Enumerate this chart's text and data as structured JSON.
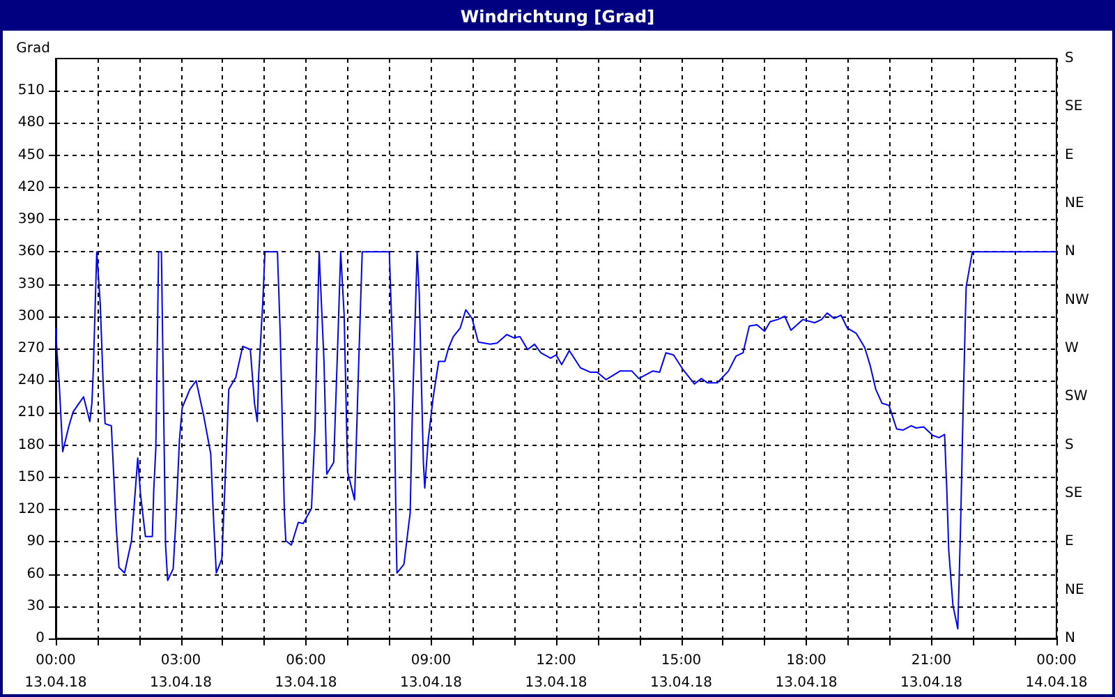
{
  "chart_data": {
    "type": "line",
    "title": "Windrichtung [Grad]",
    "ylabel": "Grad",
    "x": [
      "--04-13T00:00",
      "--04-13T00:02",
      "--04-13T00:05",
      "--04-13T00:10",
      "--04-13T00:19",
      "--04-13T00:25",
      "--04-13T00:40",
      "--04-13T00:49",
      "--04-13T00:52",
      "--04-13T00:54",
      "--04-13T00:59",
      "--04-13T01:04",
      "--04-13T01:08",
      "--04-13T01:11",
      "--04-13T01:20",
      "--04-13T01:27",
      "--04-13T01:31",
      "--04-13T01:39",
      "--04-13T01:49",
      "--04-13T01:58",
      "--04-13T02:02",
      "--04-13T02:09",
      "--04-13T02:19",
      "--04-13T02:21",
      "--04-13T02:24",
      "--04-13T02:28",
      "--04-13T02:32",
      "--04-13T02:34",
      "--04-13T02:38",
      "--04-13T02:41",
      "--04-13T02:49",
      "--04-13T02:53",
      "--04-13T02:58",
      "--04-13T03:02",
      "--04-13T03:13",
      "--04-13T03:22",
      "--04-13T03:33",
      "--04-13T03:43",
      "--04-13T03:47",
      "--04-13T03:51",
      "--04-13T03:59",
      "--04-13T04:04",
      "--04-13T04:09",
      "--04-13T04:19",
      "--04-13T04:29",
      "--04-13T04:40",
      "--04-13T04:46",
      "--04-13T04:50",
      "--04-13T04:52",
      "--04-13T04:58",
      "--04-13T05:01",
      "--04-13T05:19",
      "--04-13T05:23",
      "--04-13T05:29",
      "--04-13T05:31",
      "--04-13T05:39",
      "--04-13T05:49",
      "--04-13T05:56",
      "--04-13T06:08",
      "--04-13T06:13",
      "--04-13T06:19",
      "--04-13T06:26",
      "--04-13T06:30",
      "--04-13T06:40",
      "--04-13T06:46",
      "--04-13T06:50",
      "--04-13T06:55",
      "--04-13T07:00",
      "--04-13T07:10",
      "--04-13T07:16",
      "--04-13T07:21",
      "--04-13T08:00",
      "--04-13T08:07",
      "--04-13T08:10",
      "--04-13T08:11",
      "--04-13T08:21",
      "--04-13T08:30",
      "--04-13T08:33",
      "--04-13T08:40",
      "--04-13T08:43",
      "--04-13T08:49",
      "--04-13T08:51",
      "--04-13T08:56",
      "--04-13T09:03",
      "--04-13T09:11",
      "--04-13T09:20",
      "--04-13T09:25",
      "--04-13T09:32",
      "--04-13T09:42",
      "--04-13T09:50",
      "--04-13T09:59",
      "--04-13T10:08",
      "--04-13T10:25",
      "--04-13T10:35",
      "--04-13T10:49",
      "--04-13T10:59",
      "--04-13T11:08",
      "--04-13T11:19",
      "--04-13T11:29",
      "--04-13T11:38",
      "--04-13T11:52",
      "--04-13T12:00",
      "--04-13T12:08",
      "--04-13T12:19",
      "--04-13T12:35",
      "--04-13T12:49",
      "--04-13T12:59",
      "--04-13T13:12",
      "--04-13T13:32",
      "--04-13T13:49",
      "--04-13T13:59",
      "--04-13T14:19",
      "--04-13T14:29",
      "--04-13T14:38",
      "--04-13T14:49",
      "--04-13T15:02",
      "--04-13T15:19",
      "--04-13T15:29",
      "--04-13T15:38",
      "--04-13T15:52",
      "--04-13T16:08",
      "--04-13T16:19",
      "--04-13T16:29",
      "--04-13T16:38",
      "--04-13T16:49",
      "--04-13T17:00",
      "--04-13T17:08",
      "--04-13T17:19",
      "--04-13T17:29",
      "--04-13T17:38",
      "--04-13T17:55",
      "--04-13T18:12",
      "--04-13T18:22",
      "--04-13T18:30",
      "--04-13T18:40",
      "--04-13T18:50",
      "--04-13T18:59",
      "--04-13T19:12",
      "--04-13T19:24",
      "--04-13T19:32",
      "--04-13T19:40",
      "--04-13T19:49",
      "--04-13T19:59",
      "--04-13T20:10",
      "--04-13T20:19",
      "--04-13T20:31",
      "--04-13T20:38",
      "--04-13T20:49",
      "--04-13T21:02",
      "--04-13T21:11",
      "--04-13T21:19",
      "--04-13T21:22",
      "--04-13T21:25",
      "--04-13T21:31",
      "--04-13T21:38",
      "--04-13T21:42",
      "--04-13T21:46",
      "--04-13T21:50",
      "--04-13T21:54",
      "--04-13T21:59",
      "--04-14T00:00"
    ],
    "series": [
      {
        "color": "#0000ff",
        "values": [
          289,
          264,
          237,
          174,
          198,
          211,
          225,
          202,
          219,
          249,
          360,
          312,
          241,
          200,
          198,
          104,
          66,
          61,
          91,
          168,
          134,
          95,
          95,
          138,
          177,
          360,
          360,
          271,
          87,
          54,
          65,
          112,
          185,
          215,
          232,
          240,
          207,
          172,
          112,
          61,
          74,
          151,
          232,
          243,
          272,
          269,
          219,
          202,
          245,
          314,
          360,
          360,
          284,
          117,
          91,
          87,
          108,
          107,
          121,
          194,
          360,
          258,
          153,
          164,
          279,
          360,
          301,
          155,
          129,
          258,
          360,
          360,
          224,
          91,
          61,
          69,
          117,
          207,
          360,
          322,
          164,
          140,
          185,
          224,
          258,
          258,
          270,
          281,
          289,
          306,
          298,
          276,
          274,
          275,
          283,
          280,
          281,
          269,
          274,
          266,
          261,
          264,
          255,
          268,
          252,
          248,
          248,
          241,
          249,
          249,
          242,
          249,
          248,
          266,
          264,
          251,
          237,
          242,
          238,
          238,
          249,
          263,
          266,
          291,
          292,
          286,
          295,
          297,
          300,
          287,
          297,
          294,
          297,
          303,
          298,
          301,
          289,
          284,
          271,
          254,
          232,
          219,
          217,
          195,
          194,
          198,
          196,
          197,
          189,
          187,
          190,
          142,
          82,
          31,
          9,
          104,
          224,
          327,
          342,
          360,
          360
        ]
      }
    ],
    "xlim": [
      "--04-13T00:00",
      "--04-14T00:00"
    ],
    "xticks": [
      {
        "value": "--04-13T00:00",
        "label": "00:00\n13.04.18"
      },
      {
        "value": "--04-13T01:00",
        "label": null
      },
      {
        "value": "--04-13T02:00",
        "label": null
      },
      {
        "value": "--04-13T03:00",
        "label": "03:00\n13.04.18"
      },
      {
        "value": "--04-13T04:00",
        "label": null
      },
      {
        "value": "--04-13T05:00",
        "label": null
      },
      {
        "value": "--04-13T06:00",
        "label": "06:00\n13.04.18"
      },
      {
        "value": "--04-13T07:00",
        "label": null
      },
      {
        "value": "--04-13T08:00",
        "label": null
      },
      {
        "value": "--04-13T09:00",
        "label": "09:00\n13.04.18"
      },
      {
        "value": "--04-13T10:00",
        "label": null
      },
      {
        "value": "--04-13T11:00",
        "label": null
      },
      {
        "value": "--04-13T12:00",
        "label": "12:00\n13.04.18"
      },
      {
        "value": "--04-13T13:00",
        "label": null
      },
      {
        "value": "--04-13T14:00",
        "label": null
      },
      {
        "value": "--04-13T15:00",
        "label": "15:00\n13.04.18"
      },
      {
        "value": "--04-13T16:00",
        "label": null
      },
      {
        "value": "--04-13T17:00",
        "label": null
      },
      {
        "value": "--04-13T18:00",
        "label": "18:00\n13.04.18"
      },
      {
        "value": "--04-13T19:00",
        "label": null
      },
      {
        "value": "--04-13T20:00",
        "label": null
      },
      {
        "value": "--04-13T21:00",
        "label": "21:00\n13.04.18"
      },
      {
        "value": "--04-13T22:00",
        "label": null
      },
      {
        "value": "--04-13T23:00",
        "label": null
      },
      {
        "value": "--04-14T00:00",
        "label": "00:00\n14.04.18"
      }
    ],
    "ylim": [
      0,
      540
    ],
    "yticks": [
      0,
      30,
      60,
      90,
      120,
      150,
      180,
      210,
      240,
      270,
      300,
      330,
      360,
      390,
      420,
      450,
      480,
      510
    ],
    "annotations": [
      "N",
      "NE",
      "E",
      "SE",
      "S",
      "SW",
      "W",
      "NW",
      "N",
      "NE",
      "E",
      "SE",
      "S"
    ],
    "grid": true,
    "marker": "none",
    "line_style": "solid"
  }
}
